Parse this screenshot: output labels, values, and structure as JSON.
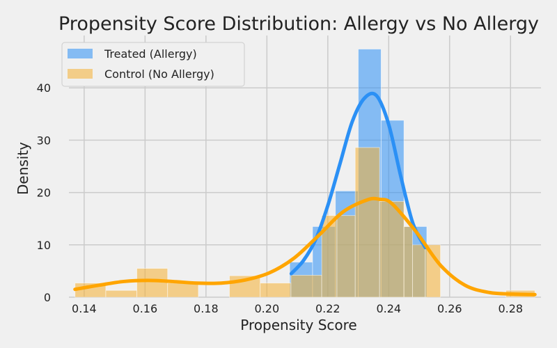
{
  "chart_data": {
    "type": "histogram",
    "title": "Propensity Score Distribution: Allergy vs No Allergy",
    "xlabel": "Propensity Score",
    "ylabel": "Density",
    "xlim": [
      0.135,
      0.29
    ],
    "ylim": [
      0,
      50
    ],
    "xticks": [
      "0.14",
      "0.16",
      "0.18",
      "0.20",
      "0.22",
      "0.24",
      "0.26",
      "0.28"
    ],
    "yticks": [
      "0",
      "10",
      "20",
      "30",
      "40"
    ],
    "grid": true,
    "legend_position": "top-left",
    "series": [
      {
        "name": "Treated (Allergy)",
        "color": "#2b90f5",
        "bins": [
          {
            "x0": 0.2075,
            "x1": 0.215,
            "y": 6.7
          },
          {
            "x0": 0.215,
            "x1": 0.2225,
            "y": 13.5
          },
          {
            "x0": 0.2225,
            "x1": 0.23,
            "y": 20.3
          },
          {
            "x0": 0.23,
            "x1": 0.2375,
            "y": 47.4
          },
          {
            "x0": 0.2375,
            "x1": 0.245,
            "y": 33.8
          },
          {
            "x0": 0.245,
            "x1": 0.2525,
            "y": 13.5
          }
        ],
        "kde": {
          "x": [
            0.208,
            0.212,
            0.216,
            0.22,
            0.224,
            0.228,
            0.232,
            0.236,
            0.24,
            0.244,
            0.248,
            0.252
          ],
          "y": [
            4.5,
            7.0,
            11.0,
            17.5,
            25.5,
            33.5,
            38.0,
            38.5,
            33.0,
            23.0,
            14.0,
            9.5
          ]
        }
      },
      {
        "name": "Control (No Allergy)",
        "color": "#f5b133",
        "bins": [
          {
            "x0": 0.137,
            "x1": 0.1471,
            "y": 2.7
          },
          {
            "x0": 0.1471,
            "x1": 0.1573,
            "y": 1.3
          },
          {
            "x0": 0.1573,
            "x1": 0.1674,
            "y": 5.5
          },
          {
            "x0": 0.1674,
            "x1": 0.1775,
            "y": 2.7
          },
          {
            "x0": 0.1877,
            "x1": 0.1978,
            "y": 4.1
          },
          {
            "x0": 0.1978,
            "x1": 0.2079,
            "y": 2.7
          },
          {
            "x0": 0.2079,
            "x1": 0.218,
            "y": 4.2
          },
          {
            "x0": 0.218,
            "x1": 0.223,
            "y": 15.6
          },
          {
            "x0": 0.223,
            "x1": 0.229,
            "y": 15.6
          },
          {
            "x0": 0.229,
            "x1": 0.237,
            "y": 28.6
          },
          {
            "x0": 0.237,
            "x1": 0.245,
            "y": 18.3
          },
          {
            "x0": 0.245,
            "x1": 0.2478,
            "y": 13.5
          },
          {
            "x0": 0.2478,
            "x1": 0.252,
            "y": 10.0
          },
          {
            "x0": 0.252,
            "x1": 0.257,
            "y": 10.0
          },
          {
            "x0": 0.2785,
            "x1": 0.288,
            "y": 1.3
          }
        ],
        "kde": {
          "x": [
            0.137,
            0.145,
            0.153,
            0.161,
            0.169,
            0.177,
            0.185,
            0.193,
            0.201,
            0.209,
            0.217,
            0.225,
            0.233,
            0.237,
            0.241,
            0.249,
            0.257,
            0.265,
            0.273,
            0.281,
            0.288
          ],
          "y": [
            1.5,
            2.3,
            3.0,
            3.2,
            3.0,
            2.7,
            2.7,
            3.3,
            4.7,
            7.5,
            11.8,
            16.3,
            18.6,
            18.7,
            17.9,
            12.5,
            6.1,
            2.3,
            0.9,
            0.6,
            0.5
          ]
        }
      }
    ]
  }
}
